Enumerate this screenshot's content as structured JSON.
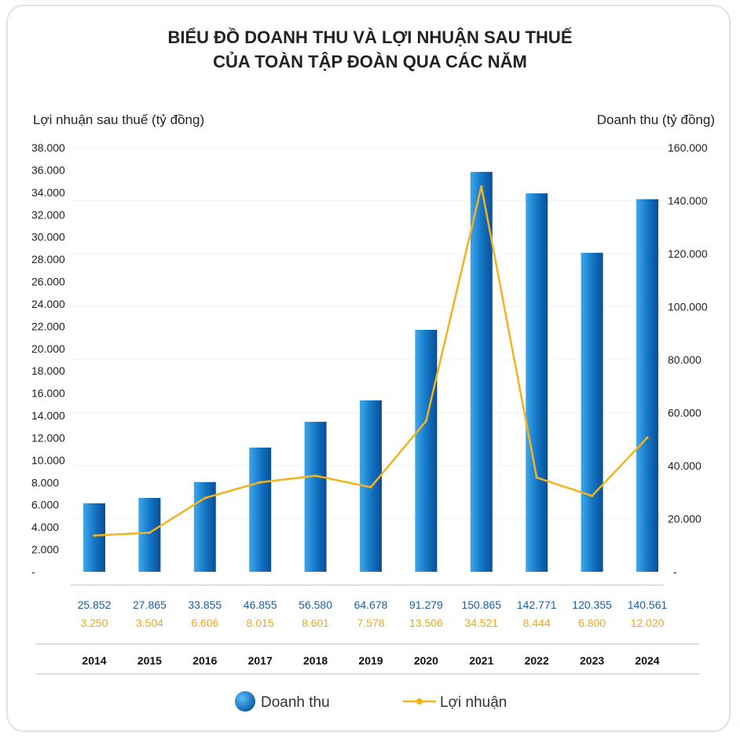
{
  "chart_data": {
    "type": "bar+line",
    "title_line1": "BIỂU ĐỒ DOANH THU VÀ LỢI NHUẬN SAU THUẾ",
    "title_line2": "CỦA TOÀN TẬP ĐOÀN QUA CÁC NĂM",
    "left_axis_label": "Lợi nhuận sau thuế (tỷ đồng)",
    "right_axis_label": "Doanh thu (tỷ đồng)",
    "categories": [
      "2014",
      "2015",
      "2016",
      "2017",
      "2018",
      "2019",
      "2020",
      "2021",
      "2022",
      "2023",
      "2024"
    ],
    "series": [
      {
        "name": "Doanh thu",
        "type": "bar",
        "axis": "right",
        "color": "#1477c4",
        "values": [
          25852,
          27865,
          33855,
          46855,
          56580,
          64678,
          91279,
          150865,
          142771,
          120355,
          140561
        ],
        "labels": [
          "25.852",
          "27.865",
          "33.855",
          "46.855",
          "56.580",
          "64.678",
          "91.279",
          "150.865",
          "142.771",
          "120.355",
          "140.561"
        ]
      },
      {
        "name": "Lợi nhuận",
        "type": "line",
        "axis": "left",
        "color": "#f5b21b",
        "values": [
          3250,
          3504,
          6606,
          8015,
          8601,
          7578,
          13506,
          34521,
          8444,
          6800,
          12020
        ],
        "labels": [
          "3.250",
          "3.504",
          "6.606",
          "8.015",
          "8.601",
          "7.578",
          "13.506",
          "34.521",
          "8.444",
          "6.800",
          "12.020"
        ]
      }
    ],
    "left_ticks": [
      {
        "v": 0,
        "t": "-"
      },
      {
        "v": 2000,
        "t": "2.000"
      },
      {
        "v": 4000,
        "t": "4.000"
      },
      {
        "v": 6000,
        "t": "6.000"
      },
      {
        "v": 8000,
        "t": "8.000"
      },
      {
        "v": 10000,
        "t": "10.000"
      },
      {
        "v": 12000,
        "t": "12.000"
      },
      {
        "v": 14000,
        "t": "14.000"
      },
      {
        "v": 16000,
        "t": "16.000"
      },
      {
        "v": 18000,
        "t": "18.000"
      },
      {
        "v": 20000,
        "t": "20.000"
      },
      {
        "v": 22000,
        "t": "22.000"
      },
      {
        "v": 24000,
        "t": "24.000"
      },
      {
        "v": 26000,
        "t": "26.000"
      },
      {
        "v": 28000,
        "t": "28.000"
      },
      {
        "v": 30000,
        "t": "30.000"
      },
      {
        "v": 32000,
        "t": "32.000"
      },
      {
        "v": 34000,
        "t": "34.000"
      },
      {
        "v": 36000,
        "t": "36.000"
      },
      {
        "v": 38000,
        "t": "38.000"
      }
    ],
    "right_ticks": [
      {
        "v": 0,
        "t": "-"
      },
      {
        "v": 20000,
        "t": "20.000"
      },
      {
        "v": 40000,
        "t": "40.000"
      },
      {
        "v": 60000,
        "t": "60.000"
      },
      {
        "v": 80000,
        "t": "80.000"
      },
      {
        "v": 100000,
        "t": "100.000"
      },
      {
        "v": 120000,
        "t": "120.000"
      },
      {
        "v": 140000,
        "t": "140.000"
      },
      {
        "v": 160000,
        "t": "160.000"
      }
    ],
    "left_range": [
      0,
      38000
    ],
    "right_range": [
      0,
      160000
    ],
    "legend": {
      "bar": "Doanh thu",
      "line": "Lợi nhuận",
      "position": "bottom"
    }
  }
}
